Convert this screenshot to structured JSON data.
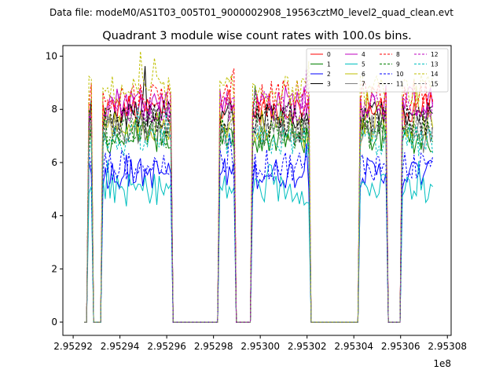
{
  "chart_data": {
    "type": "line",
    "suptitle": "Data file: modeM0/AS1T03_005T01_9000002908_19563cztM0_level2_quad_clean.evt",
    "title": "Quadrant 3 module wise count rates with 100.0s bins.",
    "xlabel": "",
    "ylabel": "",
    "x_offset_label": "1e8",
    "x_unit_scale": 100000000,
    "xlim": [
      2.9529156,
      2.9530816
    ],
    "ylim": [
      -0.5,
      10.4
    ],
    "xticks": [
      2.95292,
      2.95294,
      2.95296,
      2.95298,
      2.953,
      2.95302,
      2.95304,
      2.95306,
      2.95308
    ],
    "xtick_labels": [
      "2.95292",
      "2.95294",
      "2.95296",
      "2.95298",
      "2.95300",
      "2.95302",
      "2.95304",
      "2.95306",
      "2.95308"
    ],
    "yticks": [
      0,
      2,
      4,
      6,
      8,
      10
    ],
    "ytick_labels": [
      "0",
      "2",
      "4",
      "6",
      "8",
      "10"
    ],
    "grid": false,
    "legend_position": "top-right",
    "segments_x": [
      [
        2.95292675,
        2.95292875
      ],
      [
        2.95293225,
        2.952962
      ],
      [
        2.9529825,
        2.952989
      ],
      [
        2.952996,
        2.9530215
      ],
      [
        2.953042,
        2.953054
      ],
      [
        2.95306,
        2.9530745
      ]
    ],
    "zero_level": 0,
    "series": [
      {
        "name": "0",
        "color": "#ff0000",
        "dash": "solid",
        "level": 8.0
      },
      {
        "name": "1",
        "color": "#008000",
        "dash": "solid",
        "level": 6.9
      },
      {
        "name": "2",
        "color": "#0000ff",
        "dash": "solid",
        "level": 5.6
      },
      {
        "name": "3",
        "color": "#000000",
        "dash": "solid",
        "level": 7.8
      },
      {
        "name": "4",
        "color": "#bf00bf",
        "dash": "solid",
        "level": 8.3
      },
      {
        "name": "5",
        "color": "#00bfbf",
        "dash": "solid",
        "level": 5.0
      },
      {
        "name": "6",
        "color": "#bfbf00",
        "dash": "solid",
        "level": 7.4
      },
      {
        "name": "7",
        "color": "#808080",
        "dash": "solid",
        "level": 7.2
      },
      {
        "name": "8",
        "color": "#ff0000",
        "dash": "dashed",
        "level": 8.5
      },
      {
        "name": "9",
        "color": "#008000",
        "dash": "dashed",
        "level": 7.1
      },
      {
        "name": "10",
        "color": "#0000ff",
        "dash": "dashed",
        "level": 5.9
      },
      {
        "name": "11",
        "color": "#000000",
        "dash": "dashed",
        "level": 7.6
      },
      {
        "name": "12",
        "color": "#bf00bf",
        "dash": "dashed",
        "level": 8.1
      },
      {
        "name": "13",
        "color": "#00bfbf",
        "dash": "dashed",
        "level": 6.8
      },
      {
        "name": "14",
        "color": "#bfbf00",
        "dash": "dashed",
        "level": 8.7
      },
      {
        "name": "15",
        "color": "#808080",
        "dash": "dashed",
        "level": 7.3
      }
    ]
  }
}
